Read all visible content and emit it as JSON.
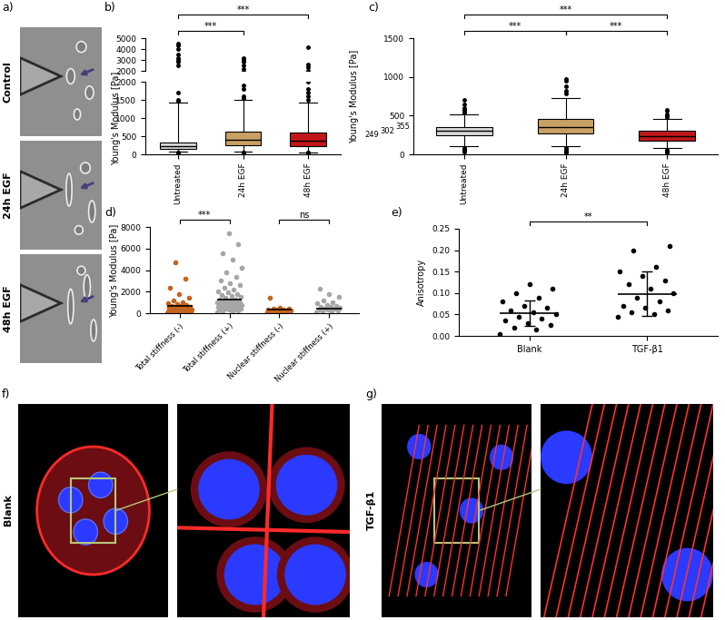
{
  "images": [
    {
      "panel_label": "a)",
      "labels": [
        "Control",
        "24h EGF",
        "48h EGF"
      ]
    },
    {
      "panel_label": "f)",
      "labels": [
        "Blank"
      ]
    },
    {
      "panel_label": "g)",
      "labels": [
        "TGF-β1"
      ]
    }
  ],
  "chart_data": [
    {
      "panel_label": "b)",
      "type": "box",
      "ylabel": "Young's Modulus [Pa]",
      "categories": [
        "Untreated",
        "24h EGF",
        "48h EGF"
      ],
      "colors": [
        "#d9d9d9",
        "#c8a064",
        "#c0171b"
      ],
      "boxes": [
        {
          "min": 80,
          "q1": 150,
          "median": 230,
          "q3": 330,
          "max": 1430,
          "outliers": [
            40,
            50,
            60,
            1480,
            1500,
            1700,
            2500,
            2800,
            3000,
            3200,
            3500,
            4000,
            4300,
            4500
          ]
        },
        {
          "min": 80,
          "q1": 260,
          "median": 400,
          "q3": 630,
          "max": 1500,
          "outliers": [
            30,
            40,
            50,
            60,
            1550,
            1600,
            1800,
            1900,
            2200,
            2500,
            2800,
            3000,
            3200
          ]
        },
        {
          "min": 60,
          "q1": 230,
          "median": 370,
          "q3": 600,
          "max": 1430,
          "outliers": [
            30,
            40,
            50,
            1500,
            1600,
            1700,
            1800,
            2000,
            2300,
            2600,
            4200
          ]
        }
      ],
      "segments": [
        {
          "ylim": [
            0,
            2000
          ],
          "yticks": [
            0,
            500,
            1000,
            1500,
            2000
          ]
        },
        {
          "ylim": [
            2000,
            5000
          ],
          "yticks": [
            2000,
            3000,
            4000,
            5000
          ]
        }
      ],
      "significance": [
        {
          "between": [
            "Untreated",
            "24h EGF"
          ],
          "label": "***"
        },
        {
          "between": [
            "Untreated",
            "48h EGF"
          ],
          "label": "***"
        }
      ]
    },
    {
      "panel_label": "c)",
      "type": "box",
      "ylabel": "Young's Modulus [Pa]",
      "categories": [
        "Untreated",
        "24h EGF",
        "48h EGF"
      ],
      "colors": [
        "#d9d9d9",
        "#c8a064",
        "#c0171b"
      ],
      "boxes": [
        {
          "min": 100,
          "q1": 249,
          "median": 302,
          "q3": 355,
          "max": 520,
          "outliers": [
            30,
            40,
            50,
            60,
            70,
            80,
            540,
            560,
            580,
            600,
            650,
            700
          ]
        },
        {
          "min": 110,
          "q1": 270,
          "median": 355,
          "q3": 460,
          "max": 730,
          "outliers": [
            20,
            40,
            60,
            80,
            780,
            820,
            880,
            950,
            970
          ]
        },
        {
          "min": 80,
          "q1": 170,
          "median": 240,
          "q3": 300,
          "max": 460,
          "outliers": [
            20,
            30,
            40,
            50,
            60,
            480,
            500,
            520,
            560,
            580
          ]
        }
      ],
      "ylim": [
        0,
        1500
      ],
      "yticks": [
        0,
        500,
        1000,
        1500
      ],
      "marked_values": [
        249,
        302,
        355
      ],
      "significance": [
        {
          "between": [
            "Untreated",
            "24h EGF"
          ],
          "label": "***"
        },
        {
          "between": [
            "24h EGF",
            "48h EGF"
          ],
          "label": "***"
        },
        {
          "between": [
            "Untreated",
            "48h EGF"
          ],
          "label": "***"
        }
      ]
    },
    {
      "panel_label": "d)",
      "type": "scatter",
      "ylabel": "Young's Modulus [Pa]",
      "categories": [
        "Total stiffness (-)",
        "Total stiffness (+)",
        "Nuclear stiffness (-)",
        "Nuclear stiffness (+)"
      ],
      "colors": [
        "#c5641c",
        "#a6a6a6",
        "#c5641c",
        "#a6a6a6"
      ],
      "values": [
        [
          30,
          50,
          60,
          70,
          80,
          90,
          100,
          110,
          120,
          130,
          140,
          150,
          160,
          170,
          190,
          210,
          230,
          250,
          270,
          290,
          310,
          330,
          360,
          390,
          420,
          450,
          480,
          520,
          560,
          600,
          650,
          700,
          760,
          820,
          900,
          1000,
          1150,
          1400,
          1800,
          2400,
          3200,
          4700
        ],
        [
          100,
          150,
          200,
          250,
          300,
          300,
          350,
          400,
          400,
          450,
          500,
          500,
          550,
          550,
          600,
          600,
          600,
          650,
          650,
          700,
          700,
          750,
          750,
          800,
          800,
          850,
          850,
          900,
          900,
          950,
          950,
          1000,
          1000,
          1050,
          1050,
          1100,
          1100,
          1150,
          1200,
          1250,
          1300,
          1400,
          1500,
          1600,
          1700,
          1800,
          1900,
          2000,
          2200,
          2400,
          2600,
          2800,
          3000,
          3400,
          3800,
          4200,
          5000,
          5600,
          6400,
          7400
        ],
        [
          50,
          80,
          100,
          120,
          150,
          170,
          190,
          210,
          230,
          250,
          270,
          290,
          310,
          330,
          360,
          400,
          450,
          500,
          1400
        ],
        [
          100,
          150,
          200,
          250,
          300,
          350,
          400,
          450,
          500,
          550,
          600,
          700,
          800,
          900,
          1000,
          1200,
          1500,
          1800,
          2300
        ]
      ],
      "means": [
        638,
        1250,
        300,
        450
      ],
      "ylim": [
        0,
        8000
      ],
      "yticks": [
        0,
        2000,
        4000,
        6000,
        8000
      ],
      "significance": [
        {
          "between": [
            "Total stiffness (-)",
            "Total stiffness (+)"
          ],
          "label": "***"
        },
        {
          "between": [
            "Nuclear stiffness (-)",
            "Nuclear stiffness (+)"
          ],
          "label": "ns"
        }
      ]
    },
    {
      "panel_label": "e)",
      "type": "scatter",
      "ylabel": "Anisotropy",
      "categories": [
        "Blank",
        "TGF-β1"
      ],
      "colors": [
        "#000000",
        "#000000"
      ],
      "values": [
        [
          0.005,
          0.015,
          0.02,
          0.025,
          0.03,
          0.035,
          0.04,
          0.045,
          0.05,
          0.055,
          0.06,
          0.065,
          0.07,
          0.08,
          0.09,
          0.1,
          0.11,
          0.12
        ],
        [
          0.045,
          0.05,
          0.055,
          0.06,
          0.065,
          0.07,
          0.08,
          0.09,
          0.1,
          0.11,
          0.12,
          0.13,
          0.14,
          0.15,
          0.16,
          0.2,
          0.21
        ]
      ],
      "means": [
        0.053,
        0.098
      ],
      "sd": [
        0.03,
        0.052
      ],
      "ylim": [
        0,
        0.25
      ],
      "yticks": [
        {
          "value": 0,
          "label": "0.00"
        },
        {
          "value": 0.05,
          "label": "0.05"
        },
        {
          "value": 0.1,
          "label": "0.10"
        },
        {
          "value": 0.15,
          "label": "0.15"
        },
        {
          "value": 0.2,
          "label": "0.20"
        },
        {
          "value": 0.25,
          "label": "0.25"
        }
      ],
      "significance": [
        {
          "between": [
            "Blank",
            "TGF-β1"
          ],
          "label": "**"
        }
      ]
    }
  ]
}
